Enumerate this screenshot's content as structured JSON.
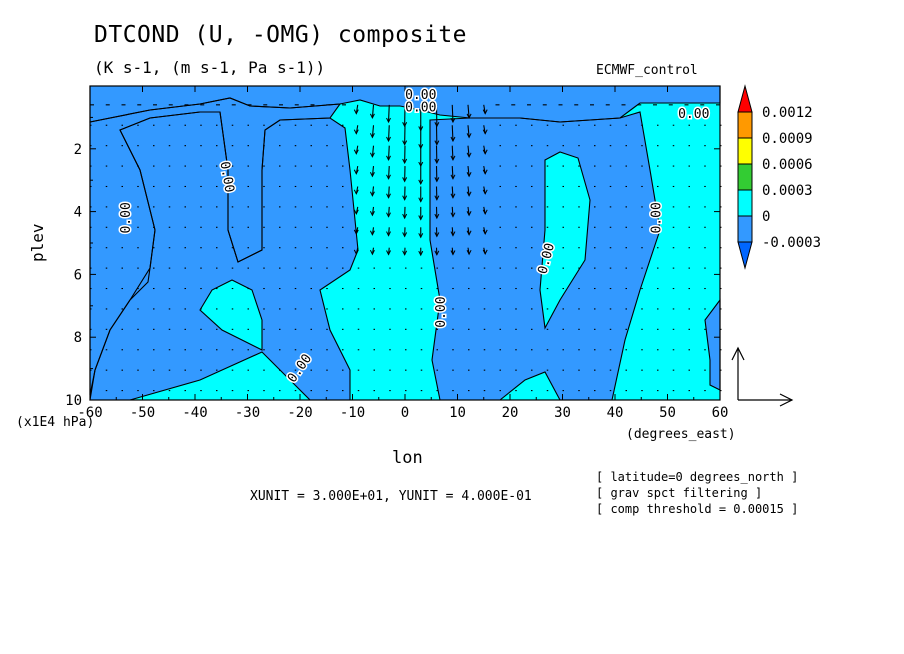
{
  "chart_data": {
    "type": "contour",
    "title": "DTCOND (U, -OMG) composite",
    "subtitle": "(K s-1, (m s-1, Pa s-1))",
    "dataset_label": "ECMWF_control",
    "xlabel": "lon",
    "x_unit_label": "(degrees_east)",
    "ylabel": "plev",
    "y_scale_label": "(x1E4 hPa)",
    "xlim": [
      -60,
      60
    ],
    "ylim": [
      10,
      0
    ],
    "x_ticks": [
      "-60",
      "-50",
      "-40",
      "-30",
      "-20",
      "-10",
      "0",
      "10",
      "20",
      "30",
      "40",
      "50",
      "60"
    ],
    "y_ticks": [
      "2",
      "4",
      "6",
      "8",
      "10"
    ],
    "colorbar_levels": [
      "0.0012",
      "0.0009",
      "0.0006",
      "0.0003",
      "0",
      "-0.0003"
    ],
    "colorbar_colors": [
      "#ff0000",
      "#ff9900",
      "#ffff00",
      "#33cc33",
      "#00ffff",
      "#3399ff",
      "#0066ff"
    ],
    "contour_labels": [
      "0.00",
      "0.00",
      "0.00",
      "0.00",
      "0.00",
      "0.00",
      "0.00",
      "0.00",
      "0.00"
    ],
    "vector_scale_text": "XUNIT = 3.000E+01, YUNIT = 4.000E-01",
    "notes": [
      "[ latitude=0 degrees_north ]",
      "[ grav spct filtering ]",
      "[ comp threshold = 0.00015 ]"
    ]
  }
}
